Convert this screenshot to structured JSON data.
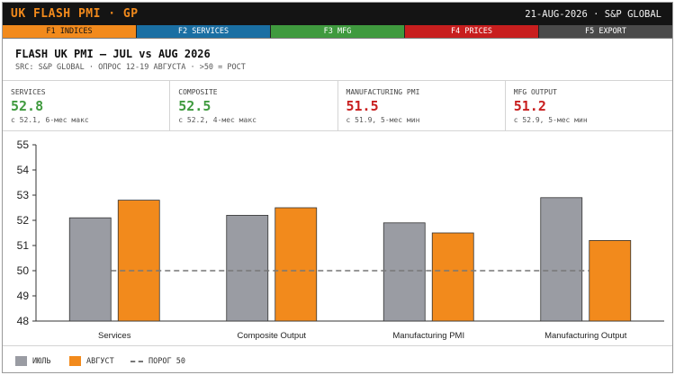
{
  "titlebar": {
    "title": "UK FLASH PMI · GP",
    "status": "21-AUG-2026 · S&P GLOBAL"
  },
  "fkeys": [
    {
      "label": "F1 INDICES",
      "color": "#f28a1c"
    },
    {
      "label": "F2 SERVICES",
      "color": "#1a6fa3"
    },
    {
      "label": "F3 MFG",
      "color": "#3f9a3e"
    },
    {
      "label": "F4 PRICES",
      "color": "#c81e1e"
    },
    {
      "label": "F5 EXPORT",
      "color": "#4a4a4a"
    }
  ],
  "header": {
    "title": "FLASH UK PMI — JUL vs AUG 2026",
    "subtitle": "SRC: S&P GLOBAL · ОПРОС 12-19 АВГУСТА · >50 = РОСТ"
  },
  "stats": [
    {
      "label": "SERVICES",
      "value": "52.8",
      "note": "с 52.1, 6-мес макс",
      "trend": "up"
    },
    {
      "label": "COMPOSITE",
      "value": "52.5",
      "note": "с 52.2, 4-мес макс",
      "trend": "up"
    },
    {
      "label": "MANUFACTURING PMI",
      "value": "51.5",
      "note": "с 51.9, 5-мес мин",
      "trend": "down"
    },
    {
      "label": "MFG OUTPUT",
      "value": "51.2",
      "note": "с 52.9, 5-мес мин",
      "trend": "down"
    }
  ],
  "colors": {
    "july": "#9a9ca3",
    "august": "#f28a1c",
    "up": "#3f9a3e",
    "down": "#c81e1e",
    "threshold": "#777777"
  },
  "chart_data": {
    "type": "bar",
    "categories": [
      "Services",
      "Composite Output",
      "Manufacturing PMI",
      "Manufacturing Output"
    ],
    "series": [
      {
        "name": "ИЮЛЬ",
        "values": [
          52.1,
          52.2,
          51.9,
          52.9
        ]
      },
      {
        "name": "АВГУСТ",
        "values": [
          52.8,
          52.5,
          51.5,
          51.2
        ]
      }
    ],
    "threshold": {
      "name": "ПОРОГ 50",
      "value": 50
    },
    "ylim": [
      48,
      55
    ],
    "yticks": [
      48,
      49,
      50,
      51,
      52,
      53,
      54,
      55
    ],
    "grid": false,
    "legend": "bottom-left"
  }
}
